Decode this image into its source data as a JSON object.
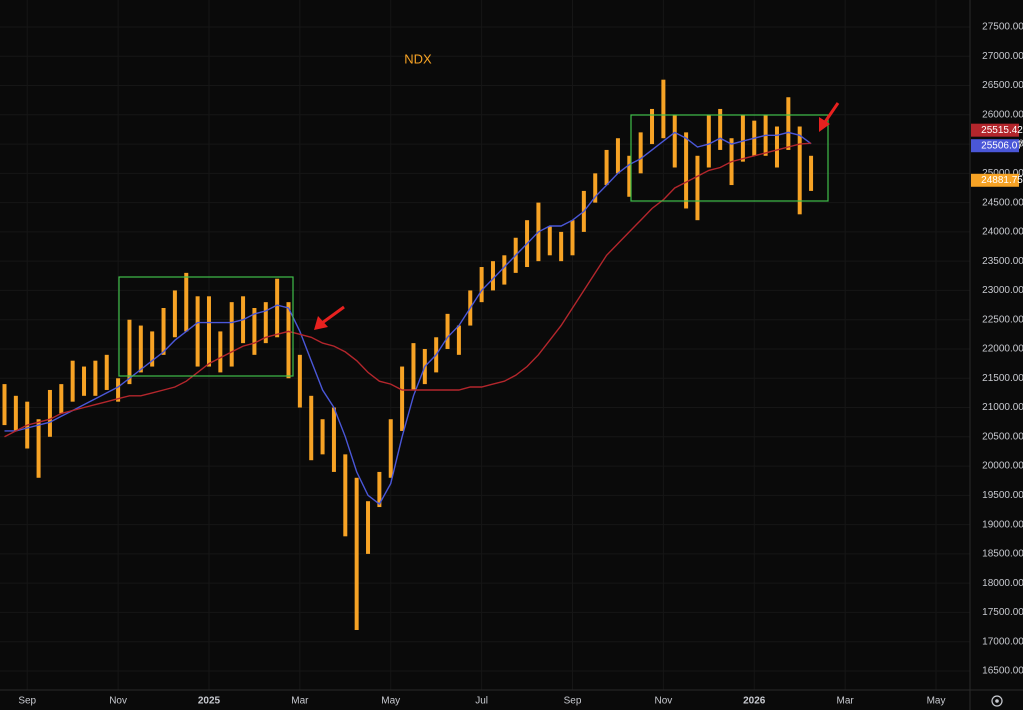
{
  "chart_data": {
    "type": "ohlc",
    "title": "NDX",
    "categories": [
      null,
      null,
      "Sep",
      null,
      null,
      null,
      null,
      null,
      null,
      null,
      "Nov",
      null,
      null,
      null,
      null,
      null,
      null,
      null,
      "2025",
      null,
      null,
      null,
      null,
      null,
      null,
      null,
      "Mar",
      null,
      null,
      null,
      null,
      null,
      null,
      null,
      "May",
      null,
      null,
      null,
      null,
      null,
      null,
      null,
      "Jul",
      null,
      null,
      null,
      null,
      null,
      null,
      null,
      "Sep",
      null,
      null,
      null,
      null,
      null,
      null,
      null,
      "Nov",
      null,
      null,
      null,
      null,
      null,
      null,
      null,
      "2026",
      null,
      null,
      null,
      null,
      null,
      null,
      null,
      "Mar",
      null,
      null,
      null,
      null,
      null,
      null,
      null,
      "May",
      null,
      null,
      null
    ],
    "high": [
      21400,
      21200,
      21100,
      20800,
      21300,
      21400,
      21800,
      21700,
      21800,
      21900,
      21500,
      22500,
      22400,
      22300,
      22700,
      23000,
      23300,
      22900,
      22900,
      22300,
      22800,
      22900,
      22700,
      22800,
      23200,
      22800,
      21900,
      21200,
      20800,
      21000,
      20200,
      19800,
      19400,
      19900,
      20800,
      21700,
      22100,
      22000,
      22200,
      22600,
      22400,
      23000,
      23400,
      23500,
      23600,
      23900,
      24200,
      24500,
      24100,
      24000,
      24200,
      24700,
      25000,
      25400,
      25600,
      25300,
      25700,
      26100,
      26600,
      26000,
      25700,
      25300,
      26000,
      26100,
      25600,
      26000,
      25900,
      26000,
      25800,
      26300,
      25800,
      25300,
      null,
      null,
      null,
      null,
      null,
      null,
      null,
      null,
      null,
      null,
      null,
      null,
      null,
      null
    ],
    "low": [
      20700,
      20600,
      20300,
      19800,
      20500,
      20900,
      21100,
      21200,
      21200,
      21300,
      21100,
      21400,
      21600,
      21700,
      21900,
      22200,
      22300,
      21700,
      21700,
      21600,
      21700,
      22100,
      21900,
      22100,
      22200,
      21500,
      21000,
      20100,
      20200,
      19900,
      18800,
      17200,
      18500,
      19300,
      19800,
      20600,
      21300,
      21400,
      21600,
      22000,
      21900,
      22400,
      22800,
      23000,
      23100,
      23300,
      23400,
      23500,
      23600,
      23500,
      23600,
      24000,
      24500,
      24800,
      25000,
      24600,
      25000,
      25500,
      25600,
      25100,
      24400,
      24200,
      25100,
      25400,
      24800,
      25200,
      25300,
      25300,
      25100,
      25400,
      24300,
      24700,
      null,
      null,
      null,
      null,
      null,
      null,
      null,
      null,
      null,
      null,
      null,
      null,
      null,
      null
    ],
    "color": "#f7a325",
    "last_close": 24881.75,
    "moving_averages": [
      {
        "color": "#4a57d8",
        "values": [
          20600,
          20600,
          20650,
          20700,
          20750,
          20850,
          20950,
          21050,
          21150,
          21250,
          21350,
          21500,
          21650,
          21800,
          21950,
          22150,
          22300,
          22450,
          22450,
          22450,
          22450,
          22500,
          22600,
          22650,
          22750,
          22700,
          22300,
          21800,
          21300,
          21000,
          20500,
          19900,
          19500,
          19350,
          19700,
          20500,
          21200,
          21700,
          21900,
          22200,
          22400,
          22700,
          23000,
          23200,
          23400,
          23600,
          23800,
          24000,
          24100,
          24100,
          24200,
          24350,
          24600,
          24800,
          25000,
          25150,
          25250,
          25400,
          25550,
          25700,
          25600,
          25450,
          25500,
          25600,
          25500,
          25550,
          25600,
          25650,
          25650,
          25700,
          25650,
          25506.07,
          null,
          null,
          null,
          null,
          null,
          null,
          null,
          null,
          null,
          null,
          null,
          null,
          null,
          null
        ]
      },
      {
        "color": "#b3262c",
        "values": [
          20500,
          20600,
          20700,
          20750,
          20800,
          20900,
          20950,
          21000,
          21050,
          21100,
          21150,
          21200,
          21200,
          21250,
          21300,
          21350,
          21450,
          21600,
          21750,
          21850,
          21950,
          22050,
          22100,
          22200,
          22250,
          22300,
          22250,
          22200,
          22100,
          22050,
          21950,
          21800,
          21600,
          21450,
          21400,
          21300,
          21300,
          21300,
          21300,
          21300,
          21300,
          21350,
          21350,
          21400,
          21450,
          21550,
          21700,
          21900,
          22150,
          22400,
          22700,
          23000,
          23300,
          23600,
          23800,
          24000,
          24200,
          24400,
          24550,
          24750,
          24850,
          24950,
          25050,
          25100,
          25200,
          25250,
          25300,
          25350,
          25400,
          25450,
          25500,
          25515.42,
          null,
          null,
          null,
          null,
          null,
          null,
          null,
          null,
          null,
          null,
          null,
          null,
          null,
          null
        ]
      }
    ],
    "ylim": [
      16175,
      27961
    ],
    "yticks": [
      {
        "value": 16500,
        "label": "16500.00"
      },
      {
        "value": 17000,
        "label": "17000.00"
      },
      {
        "value": 17500,
        "label": "17500.00"
      },
      {
        "value": 18000,
        "label": "18000.00"
      },
      {
        "value": 18500,
        "label": "18500.00"
      },
      {
        "value": 19000,
        "label": "19000.00"
      },
      {
        "value": 19500,
        "label": "19500.00"
      },
      {
        "value": 20000,
        "label": "20000.00"
      },
      {
        "value": 20500,
        "label": "20500.00"
      },
      {
        "value": 21000,
        "label": "21000.00"
      },
      {
        "value": 21500,
        "label": "21500.00"
      },
      {
        "value": 22000,
        "label": "22000.00"
      },
      {
        "value": 22500,
        "label": "22500.00"
      },
      {
        "value": 23000,
        "label": "23000.00"
      },
      {
        "value": 23500,
        "label": "23500.00"
      },
      {
        "value": 24000,
        "label": "24000.00"
      },
      {
        "value": 24500,
        "label": "24500.00"
      },
      {
        "value": 25000,
        "label": "25000.00"
      },
      {
        "value": 25500,
        "label": "25500.00"
      },
      {
        "value": 26000,
        "label": "26000.00"
      },
      {
        "value": 26500,
        "label": "26500.00"
      },
      {
        "value": 27000,
        "label": "27000.00"
      },
      {
        "value": 27500,
        "label": "27500.00"
      }
    ],
    "grid": true
  }
}
